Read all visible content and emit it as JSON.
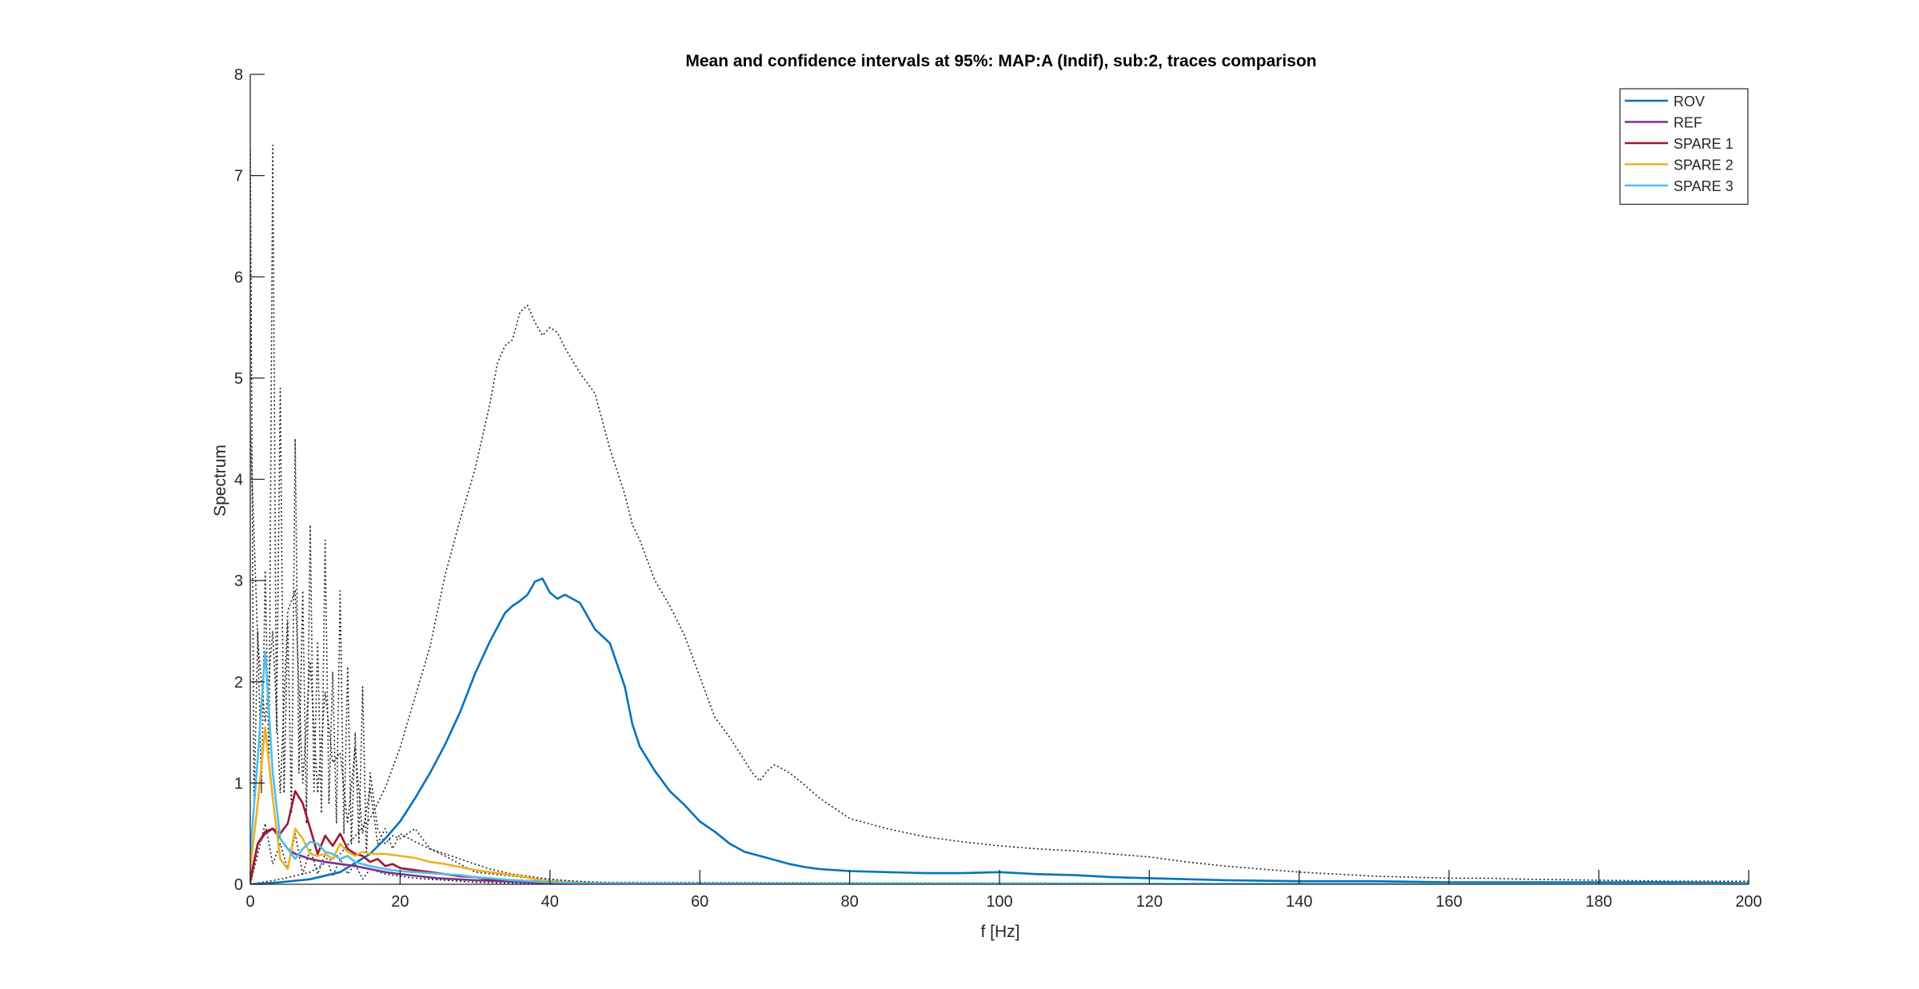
{
  "chart_data": {
    "type": "line",
    "title": "Mean and confidence intervals at 95%: MAP:A (Indif), sub:2, traces comparison",
    "xlabel": "f [Hz]",
    "ylabel": "Spectrum",
    "xlim": [
      0,
      200
    ],
    "ylim": [
      0,
      8
    ],
    "xticks": [
      0,
      20,
      40,
      60,
      80,
      100,
      120,
      140,
      160,
      180,
      200
    ],
    "yticks": [
      0,
      1,
      2,
      3,
      4,
      5,
      6,
      7,
      8
    ],
    "grid": false,
    "legend_position": "top-right",
    "series": [
      {
        "name": "ROV",
        "color": "#0072BD",
        "x": [
          0,
          4,
          8,
          12,
          16,
          18,
          20,
          22,
          24,
          26,
          28,
          30,
          32,
          34,
          35,
          36,
          37,
          38,
          39,
          40,
          41,
          42,
          44,
          46,
          48,
          50,
          51,
          52,
          54,
          56,
          58,
          60,
          62,
          64,
          66,
          68,
          70,
          72,
          74,
          76,
          80,
          85,
          90,
          95,
          100,
          105,
          110,
          115,
          120,
          125,
          130,
          140,
          150,
          160,
          170,
          180,
          190,
          200
        ],
        "y": [
          0,
          0.02,
          0.05,
          0.12,
          0.3,
          0.45,
          0.62,
          0.85,
          1.1,
          1.38,
          1.7,
          2.08,
          2.4,
          2.68,
          2.75,
          2.8,
          2.86,
          2.99,
          3.02,
          2.88,
          2.82,
          2.86,
          2.78,
          2.52,
          2.38,
          1.95,
          1.58,
          1.36,
          1.12,
          0.92,
          0.78,
          0.62,
          0.52,
          0.4,
          0.32,
          0.28,
          0.24,
          0.2,
          0.17,
          0.15,
          0.13,
          0.12,
          0.11,
          0.11,
          0.12,
          0.1,
          0.09,
          0.07,
          0.06,
          0.05,
          0.04,
          0.03,
          0.03,
          0.02,
          0.02,
          0.02,
          0.02,
          0.01
        ]
      },
      {
        "name": "REF",
        "color": "#7E2F8E",
        "x": [
          0,
          1,
          2,
          3,
          4,
          5,
          6,
          8,
          10,
          12,
          14,
          16,
          18,
          20,
          25,
          30,
          40,
          50,
          200
        ],
        "y": [
          0.05,
          0.4,
          0.5,
          0.55,
          0.45,
          0.35,
          0.3,
          0.25,
          0.22,
          0.2,
          0.18,
          0.15,
          0.12,
          0.1,
          0.06,
          0.04,
          0.01,
          0.0,
          0.0
        ]
      },
      {
        "name": "SPARE 1",
        "color": "#A2142F",
        "x": [
          0,
          1,
          2,
          3,
          4,
          5,
          6,
          7,
          8,
          9,
          10,
          11,
          12,
          13,
          14,
          15,
          16,
          17,
          18,
          19,
          20,
          22,
          24,
          26,
          28,
          30,
          32,
          35,
          40,
          45,
          50,
          200
        ],
        "y": [
          0.02,
          0.4,
          0.52,
          0.55,
          0.5,
          0.6,
          0.92,
          0.8,
          0.55,
          0.3,
          0.48,
          0.38,
          0.5,
          0.35,
          0.3,
          0.28,
          0.22,
          0.25,
          0.18,
          0.2,
          0.16,
          0.14,
          0.12,
          0.1,
          0.08,
          0.07,
          0.05,
          0.04,
          0.02,
          0.01,
          0.0,
          0.0
        ]
      },
      {
        "name": "SPARE 2",
        "color": "#EDB120",
        "x": [
          0,
          1,
          2,
          3,
          4,
          5,
          6,
          7,
          8,
          9,
          10,
          11,
          12,
          13,
          14,
          15,
          16,
          17,
          18,
          20,
          22,
          24,
          26,
          28,
          30,
          32,
          34,
          36,
          38,
          40,
          45,
          200
        ],
        "y": [
          0.15,
          0.8,
          1.55,
          0.85,
          0.25,
          0.15,
          0.55,
          0.45,
          0.3,
          0.28,
          0.3,
          0.25,
          0.4,
          0.32,
          0.28,
          0.32,
          0.3,
          0.3,
          0.3,
          0.28,
          0.26,
          0.22,
          0.2,
          0.17,
          0.14,
          0.12,
          0.1,
          0.08,
          0.05,
          0.03,
          0.01,
          0.0
        ]
      },
      {
        "name": "SPARE 3",
        "color": "#4DBEEE",
        "x": [
          0,
          1,
          2,
          3,
          4,
          5,
          6,
          7,
          8,
          9,
          10,
          11,
          12,
          13,
          14,
          15,
          16,
          18,
          20,
          22,
          24,
          26,
          28,
          30,
          32,
          35,
          40,
          45,
          200
        ],
        "y": [
          0.3,
          1.25,
          2.3,
          1.1,
          0.45,
          0.35,
          0.25,
          0.35,
          0.42,
          0.4,
          0.32,
          0.3,
          0.25,
          0.28,
          0.22,
          0.2,
          0.18,
          0.15,
          0.13,
          0.12,
          0.11,
          0.1,
          0.09,
          0.07,
          0.06,
          0.04,
          0.02,
          0.01,
          0.0
        ]
      },
      {
        "name": "",
        "role": "confidence-bound",
        "color": "#222222",
        "dotted": true,
        "x": [
          0,
          4,
          8,
          12,
          16,
          18,
          20,
          22,
          24,
          26,
          28,
          30,
          32,
          33,
          34,
          35,
          36,
          37,
          38,
          39,
          40,
          41,
          42,
          44,
          46,
          48,
          50,
          51,
          52,
          54,
          56,
          58,
          60,
          62,
          64,
          66,
          67,
          68,
          69,
          70,
          72,
          74,
          76,
          78,
          80,
          85,
          90,
          95,
          100,
          105,
          110,
          115,
          120,
          125,
          130,
          135,
          140,
          145,
          150,
          155,
          160,
          165,
          170,
          180,
          190,
          200
        ],
        "y": [
          0,
          0.05,
          0.12,
          0.3,
          0.65,
          0.95,
          1.35,
          1.85,
          2.35,
          3.05,
          3.6,
          4.1,
          4.75,
          5.15,
          5.32,
          5.38,
          5.65,
          5.72,
          5.55,
          5.42,
          5.5,
          5.45,
          5.3,
          5.05,
          4.85,
          4.3,
          3.85,
          3.55,
          3.4,
          3.0,
          2.75,
          2.45,
          2.05,
          1.65,
          1.45,
          1.22,
          1.1,
          1.02,
          1.12,
          1.18,
          1.1,
          0.98,
          0.85,
          0.75,
          0.65,
          0.55,
          0.47,
          0.42,
          0.38,
          0.35,
          0.33,
          0.3,
          0.27,
          0.22,
          0.18,
          0.15,
          0.12,
          0.1,
          0.08,
          0.07,
          0.06,
          0.06,
          0.05,
          0.04,
          0.03,
          0.03
        ]
      },
      {
        "name": "",
        "role": "confidence-bound",
        "color": "#222222",
        "dotted": true,
        "x": [
          0,
          0.5,
          1,
          1.5,
          2,
          2.5,
          3,
          3.5,
          4,
          4.5,
          5,
          5.5,
          6,
          6.5,
          7,
          7.5,
          8,
          8.5,
          9,
          9.5,
          10,
          10.5,
          11,
          11.5,
          12,
          12.5,
          13,
          13.5,
          14,
          14.5,
          15,
          15.5,
          16,
          17,
          18,
          19,
          20,
          22,
          24,
          26,
          28,
          30,
          35,
          40,
          50,
          200
        ],
        "y": [
          7.25,
          0.8,
          2.5,
          0.9,
          3.1,
          1.2,
          7.3,
          1.5,
          4.9,
          0.9,
          2.6,
          0.7,
          4.4,
          1.1,
          2.9,
          0.6,
          3.55,
          0.9,
          2.4,
          0.7,
          3.4,
          0.8,
          2.1,
          0.6,
          2.9,
          0.5,
          2.15,
          0.4,
          1.5,
          0.4,
          1.95,
          0.3,
          1.1,
          0.55,
          0.4,
          0.48,
          0.45,
          0.55,
          0.35,
          0.28,
          0.2,
          0.12,
          0.08,
          0.04,
          0.01,
          0.0
        ]
      },
      {
        "name": "",
        "role": "confidence-bound",
        "color": "#222222",
        "dotted": true,
        "x": [
          0,
          1,
          2,
          3,
          4,
          5,
          6,
          7,
          8,
          9,
          10,
          11,
          12,
          13,
          14,
          15,
          16,
          18,
          20,
          22,
          24,
          26,
          28,
          30,
          35,
          40,
          200
        ],
        "y": [
          0.0,
          0.3,
          0.6,
          0.2,
          0.4,
          0.15,
          0.5,
          0.1,
          0.35,
          0.1,
          0.3,
          0.08,
          0.25,
          0.1,
          0.2,
          0.05,
          0.15,
          0.1,
          0.08,
          0.06,
          0.05,
          0.04,
          0.03,
          0.02,
          0.01,
          0.0,
          0.0
        ]
      },
      {
        "name": "",
        "role": "confidence-bound",
        "color": "#222222",
        "dotted": true,
        "x": [
          0,
          1,
          2,
          3,
          4,
          5,
          6,
          7,
          8,
          9,
          10,
          11,
          12,
          13,
          14,
          15,
          16,
          17,
          18,
          19,
          20,
          22,
          24,
          26,
          28,
          30,
          32,
          35,
          40,
          45,
          200
        ],
        "y": [
          4.5,
          2.4,
          1.6,
          2.5,
          0.9,
          2.7,
          2.9,
          1.0,
          2.2,
          0.9,
          1.9,
          1.2,
          1.3,
          0.6,
          1.35,
          0.5,
          0.95,
          0.4,
          0.55,
          0.35,
          0.5,
          0.42,
          0.35,
          0.3,
          0.25,
          0.2,
          0.15,
          0.1,
          0.05,
          0.02,
          0.0
        ]
      }
    ]
  }
}
